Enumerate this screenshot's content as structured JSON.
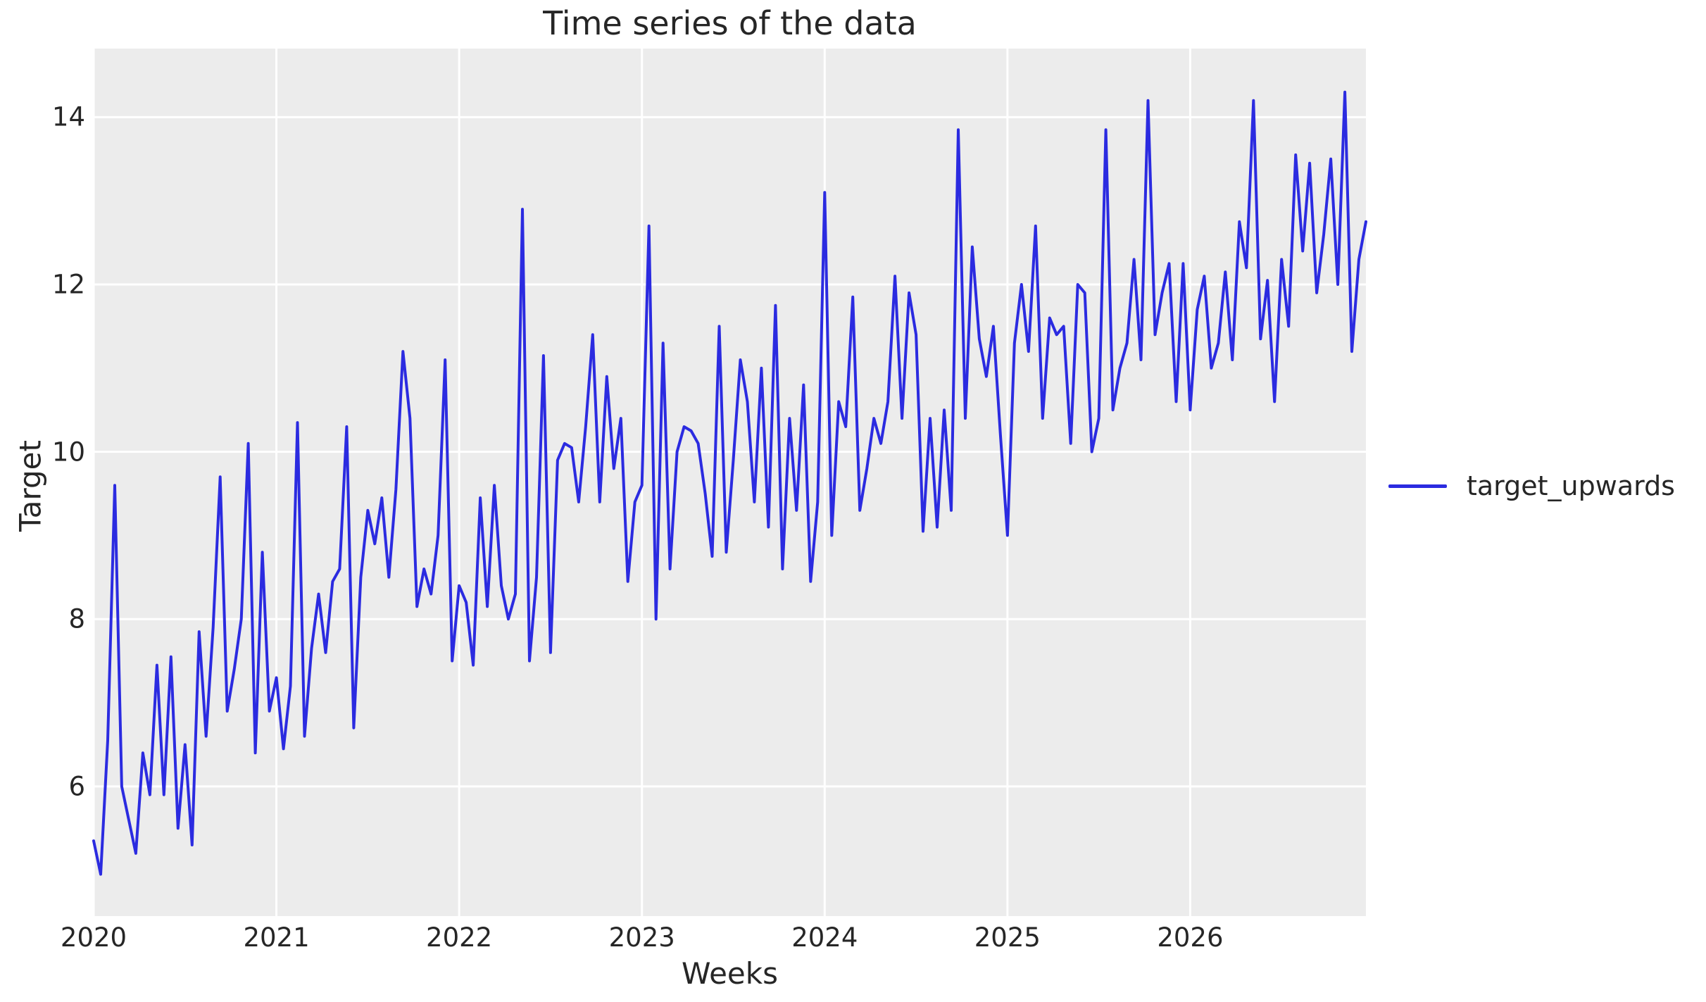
{
  "figure": {
    "background": "#ffffff",
    "plot_background": "#ececec",
    "grid_color": "#ffffff",
    "text_color": "#262626"
  },
  "chart_data": {
    "type": "line",
    "title": "Time series of the data",
    "xlabel": "Weeks",
    "ylabel": "Target",
    "grid": true,
    "legend_position": "center right, outside plot area",
    "x_tick_labels": [
      "2020",
      "2021",
      "2022",
      "2023",
      "2024",
      "2025",
      "2026"
    ],
    "x_tick_values": [
      2020,
      2021,
      2022,
      2023,
      2024,
      2025,
      2026
    ],
    "y_tick_labels": [
      "6",
      "8",
      "10",
      "12",
      "14"
    ],
    "y_tick_values": [
      6,
      8,
      10,
      12,
      14
    ],
    "xlim": [
      2020,
      2026.9615
    ],
    "ylim": [
      4.45,
      14.82
    ],
    "series": [
      {
        "name": "target_upwards",
        "color": "#2b2be0",
        "line_width": 4,
        "x_start": 2020,
        "x_step": 0.0384615,
        "values": [
          5.35,
          4.95,
          6.55,
          9.6,
          6.0,
          5.6,
          5.2,
          6.4,
          5.9,
          7.45,
          5.9,
          7.55,
          5.5,
          6.5,
          5.3,
          7.85,
          6.6,
          7.9,
          9.7,
          6.9,
          7.4,
          8.0,
          10.1,
          6.4,
          8.8,
          6.9,
          7.3,
          6.45,
          7.2,
          10.35,
          6.6,
          7.65,
          8.3,
          7.6,
          8.45,
          8.6,
          10.3,
          6.7,
          8.5,
          9.3,
          8.9,
          9.45,
          8.5,
          9.55,
          11.2,
          10.4,
          8.15,
          8.6,
          8.3,
          9.0,
          11.1,
          7.5,
          8.4,
          8.2,
          7.45,
          9.45,
          8.15,
          9.6,
          8.4,
          8.0,
          8.3,
          12.9,
          7.5,
          8.5,
          11.15,
          7.6,
          9.9,
          10.1,
          10.05,
          9.4,
          10.3,
          11.4,
          9.4,
          10.9,
          9.8,
          10.4,
          8.45,
          9.4,
          9.6,
          12.7,
          8.0,
          11.3,
          8.6,
          10.0,
          10.3,
          10.25,
          10.1,
          9.5,
          8.75,
          11.5,
          8.8,
          9.9,
          11.1,
          10.6,
          9.4,
          11.0,
          9.1,
          11.75,
          8.6,
          10.4,
          9.3,
          10.8,
          8.45,
          9.4,
          13.1,
          9.0,
          10.6,
          10.3,
          11.85,
          9.3,
          9.8,
          10.4,
          10.1,
          10.6,
          12.1,
          10.4,
          11.9,
          11.4,
          9.05,
          10.4,
          9.1,
          10.5,
          9.3,
          13.85,
          10.4,
          12.45,
          11.35,
          10.9,
          11.5,
          10.2,
          9.0,
          11.3,
          12.0,
          11.2,
          12.7,
          10.4,
          11.6,
          11.4,
          11.5,
          10.1,
          12.0,
          11.9,
          10.0,
          10.4,
          13.85,
          10.5,
          11.0,
          11.3,
          12.3,
          11.1,
          14.2,
          11.4,
          11.9,
          12.25,
          10.6,
          12.25,
          10.5,
          11.7,
          12.1,
          11.0,
          11.3,
          12.15,
          11.1,
          12.75,
          12.2,
          14.2,
          11.35,
          12.05,
          10.6,
          12.3,
          11.5,
          13.55,
          12.4,
          13.45,
          11.9,
          12.6,
          13.5,
          12.0,
          14.3,
          11.2,
          12.3,
          12.75
        ]
      }
    ]
  }
}
